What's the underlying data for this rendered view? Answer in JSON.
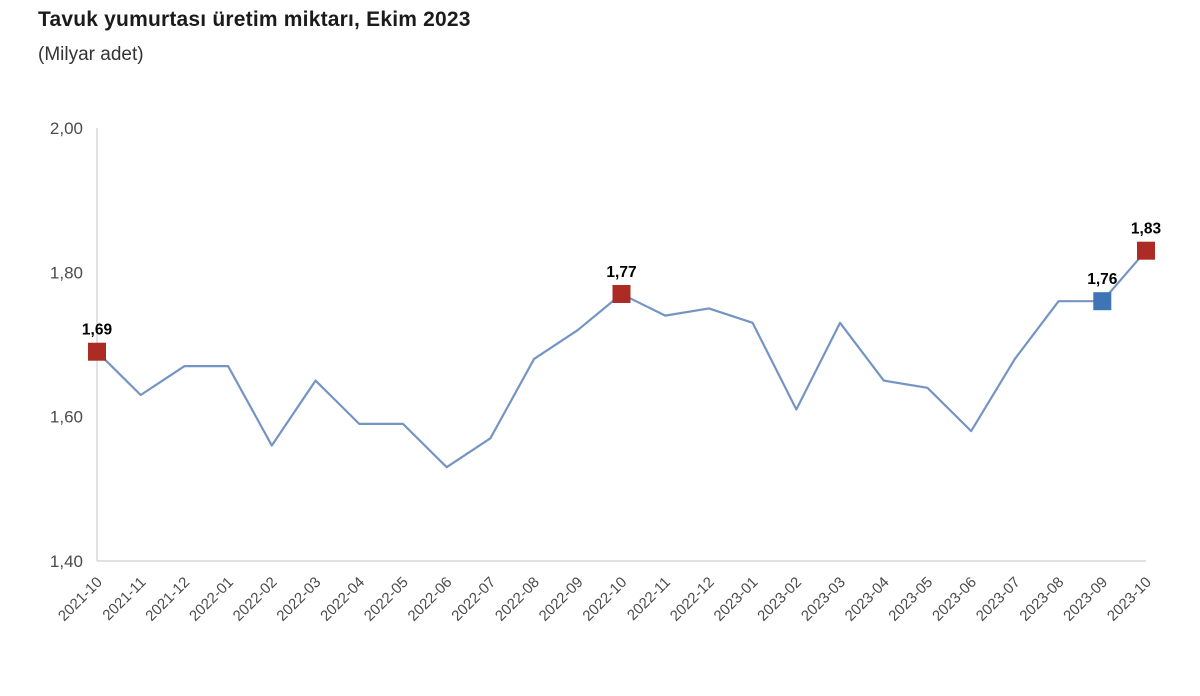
{
  "title": "Tavuk yumurtası üretim miktarı, Ekim 2023",
  "subtitle": "(Milyar adet)",
  "chart_data": {
    "type": "line",
    "title": "Tavuk yumurtası üretim miktarı, Ekim 2023",
    "subtitle": "(Milyar adet)",
    "xlabel": "",
    "ylabel": "",
    "grid": false,
    "legend_position": "none",
    "ylim": [
      1.4,
      2.0
    ],
    "yticks": [
      1.4,
      1.6,
      1.8,
      2.0
    ],
    "ytick_labels": [
      "1,40",
      "1,60",
      "1,80",
      "2,00"
    ],
    "x": [
      "2021-10",
      "2021-11",
      "2021-12",
      "2022-01",
      "2022-02",
      "2022-03",
      "2022-04",
      "2022-05",
      "2022-06",
      "2022-07",
      "2022-08",
      "2022-09",
      "2022-10",
      "2022-11",
      "2022-12",
      "2023-01",
      "2023-02",
      "2023-03",
      "2023-04",
      "2023-05",
      "2023-06",
      "2023-07",
      "2023-08",
      "2023-09",
      "2023-10"
    ],
    "values": [
      1.69,
      1.63,
      1.67,
      1.67,
      1.56,
      1.65,
      1.59,
      1.59,
      1.53,
      1.57,
      1.68,
      1.72,
      1.77,
      1.74,
      1.75,
      1.73,
      1.61,
      1.73,
      1.65,
      1.64,
      1.58,
      1.68,
      1.76,
      1.76,
      1.83
    ],
    "highlighted_points": [
      {
        "x": "2021-10",
        "label": "1,69",
        "color": "#AD2B25"
      },
      {
        "x": "2022-10",
        "label": "1,77",
        "color": "#AD2B25"
      },
      {
        "x": "2023-09",
        "label": "1,76",
        "color": "#3F74B5"
      },
      {
        "x": "2023-10",
        "label": "1,83",
        "color": "#AD2B25"
      }
    ],
    "colors": {
      "line": "#7495C4",
      "marker_red": "#AD2B25",
      "marker_blue": "#3F74B5",
      "axis": "#D9D9D9",
      "tick_text": "#4B4B4B",
      "label_text": "#000000"
    }
  }
}
